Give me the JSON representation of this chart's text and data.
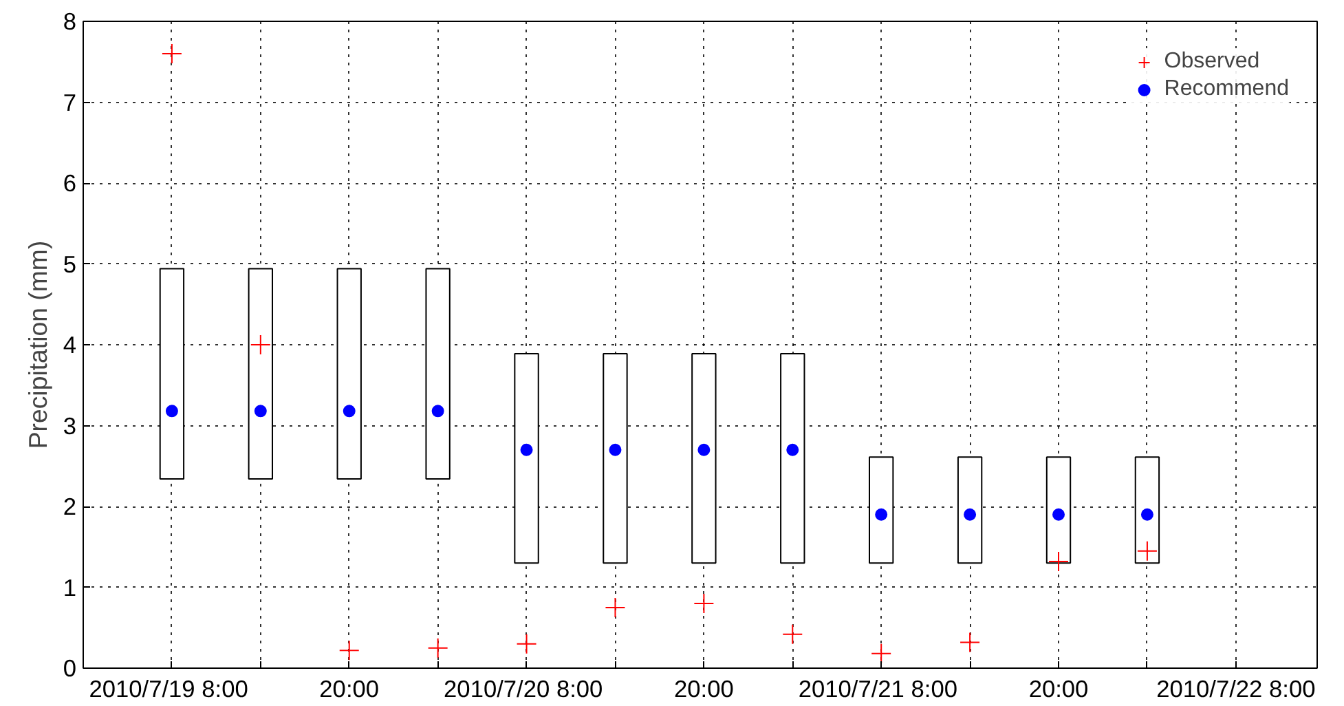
{
  "chart_data": {
    "type": "bar",
    "ylabel": "Precipitation (mm)",
    "x": [
      "2010-07-19T08:00",
      "2010-07-19T14:00",
      "2010-07-19T20:00",
      "2010-07-20T02:00",
      "2010-07-20T08:00",
      "2010-07-20T14:00",
      "2010-07-20T20:00",
      "2010-07-21T02:00",
      "2010-07-21T08:00",
      "2010-07-21T14:00",
      "2010-07-21T20:00",
      "2010-07-22T02:00"
    ],
    "series": [
      {
        "color": "#ffffff",
        "base": [
          2.34,
          2.34,
          2.34,
          2.34,
          1.3,
          1.3,
          1.3,
          1.3,
          1.3,
          1.3,
          1.3,
          1.3
        ],
        "values": [
          2.6,
          2.6,
          2.6,
          2.6,
          2.59,
          2.59,
          2.59,
          2.59,
          1.31,
          1.31,
          1.31,
          1.31
        ]
      },
      {
        "type": "scatter",
        "name": "Observed",
        "color": "#ff0000",
        "marker": "cross",
        "values": [
          7.6,
          4.0,
          0.22,
          0.25,
          0.3,
          0.75,
          0.8,
          0.42,
          0.18,
          0.32,
          1.32,
          1.45
        ]
      },
      {
        "type": "scatter",
        "name": "Recommend",
        "color": "#0000ff",
        "marker": "circle",
        "values": [
          3.18,
          3.18,
          3.18,
          3.18,
          2.7,
          2.7,
          2.7,
          2.7,
          1.9,
          1.9,
          1.9,
          1.9
        ]
      }
    ],
    "xlim": [
      "2010-07-19T02:00",
      "2010-07-22T13:30"
    ],
    "xticks": [
      {
        "value": "2010-07-19T08:00",
        "label": "2010/7/19  8:00"
      },
      {
        "value": "2010-07-19T14:00",
        "label": null
      },
      {
        "value": "2010-07-19T20:00",
        "label": "20:00"
      },
      {
        "value": "2010-07-20T02:00",
        "label": null
      },
      {
        "value": "2010-07-20T08:00",
        "label": "2010/7/20  8:00"
      },
      {
        "value": "2010-07-20T14:00",
        "label": null
      },
      {
        "value": "2010-07-20T20:00",
        "label": "20:00"
      },
      {
        "value": "2010-07-21T02:00",
        "label": null
      },
      {
        "value": "2010-07-21T08:00",
        "label": "2010/7/21  8:00"
      },
      {
        "value": "2010-07-21T14:00",
        "label": null
      },
      {
        "value": "2010-07-21T20:00",
        "label": "20:00"
      },
      {
        "value": "2010-07-22T02:00",
        "label": null
      },
      {
        "value": "2010-07-22T08:00",
        "label": "2010/7/22 8:00"
      }
    ],
    "ylim": [
      0,
      8
    ],
    "yticks": [
      0,
      1,
      2,
      3,
      4,
      5,
      6,
      7,
      8
    ],
    "grid": true,
    "legend": "top right",
    "line_style": "dotted"
  }
}
